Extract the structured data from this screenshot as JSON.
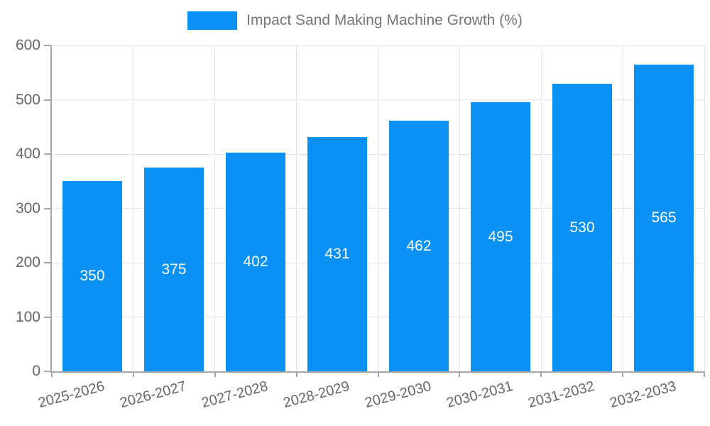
{
  "legend": {
    "label": "Impact Sand Making Machine Growth (%)"
  },
  "chart_data": {
    "type": "bar",
    "title": "Impact Sand Making Machine Growth (%)",
    "categories": [
      "2025-2026",
      "2026-2027",
      "2027-2028",
      "2028-2029",
      "2029-2030",
      "2030-2031",
      "2031-2032",
      "2032-2033"
    ],
    "values": [
      350,
      375,
      402,
      431,
      462,
      495,
      530,
      565
    ],
    "xlabel": "",
    "ylabel": "",
    "ylim": [
      0,
      600
    ],
    "yticks": [
      0,
      100,
      200,
      300,
      400,
      500,
      600
    ],
    "grid": true,
    "legend_position": "top",
    "value_labels": "centered-inside-bars",
    "colors": {
      "bar": "#0991f5",
      "value_label": "#ffffff",
      "axis": "#a6a6a6",
      "gridline": "#e3e3e3",
      "tick_text": "#666666",
      "legend_text": "#757575",
      "background": "#ffffff"
    }
  }
}
